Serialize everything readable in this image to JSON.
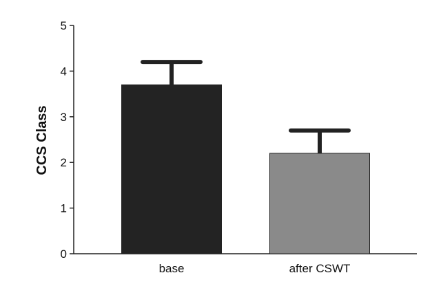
{
  "chart_data": {
    "type": "bar",
    "title": "",
    "xlabel": "",
    "ylabel": "CCS Class",
    "categories": [
      "base",
      "after CSWT"
    ],
    "values": [
      3.7,
      2.2
    ],
    "error_upper": [
      4.2,
      2.7
    ],
    "ylim": [
      0,
      5
    ],
    "yticks": [
      "0",
      "1",
      "2",
      "3",
      "4",
      "5"
    ],
    "bar_colors": [
      "#232323",
      "#8a8a8a"
    ],
    "grid": false,
    "legend": "none"
  }
}
